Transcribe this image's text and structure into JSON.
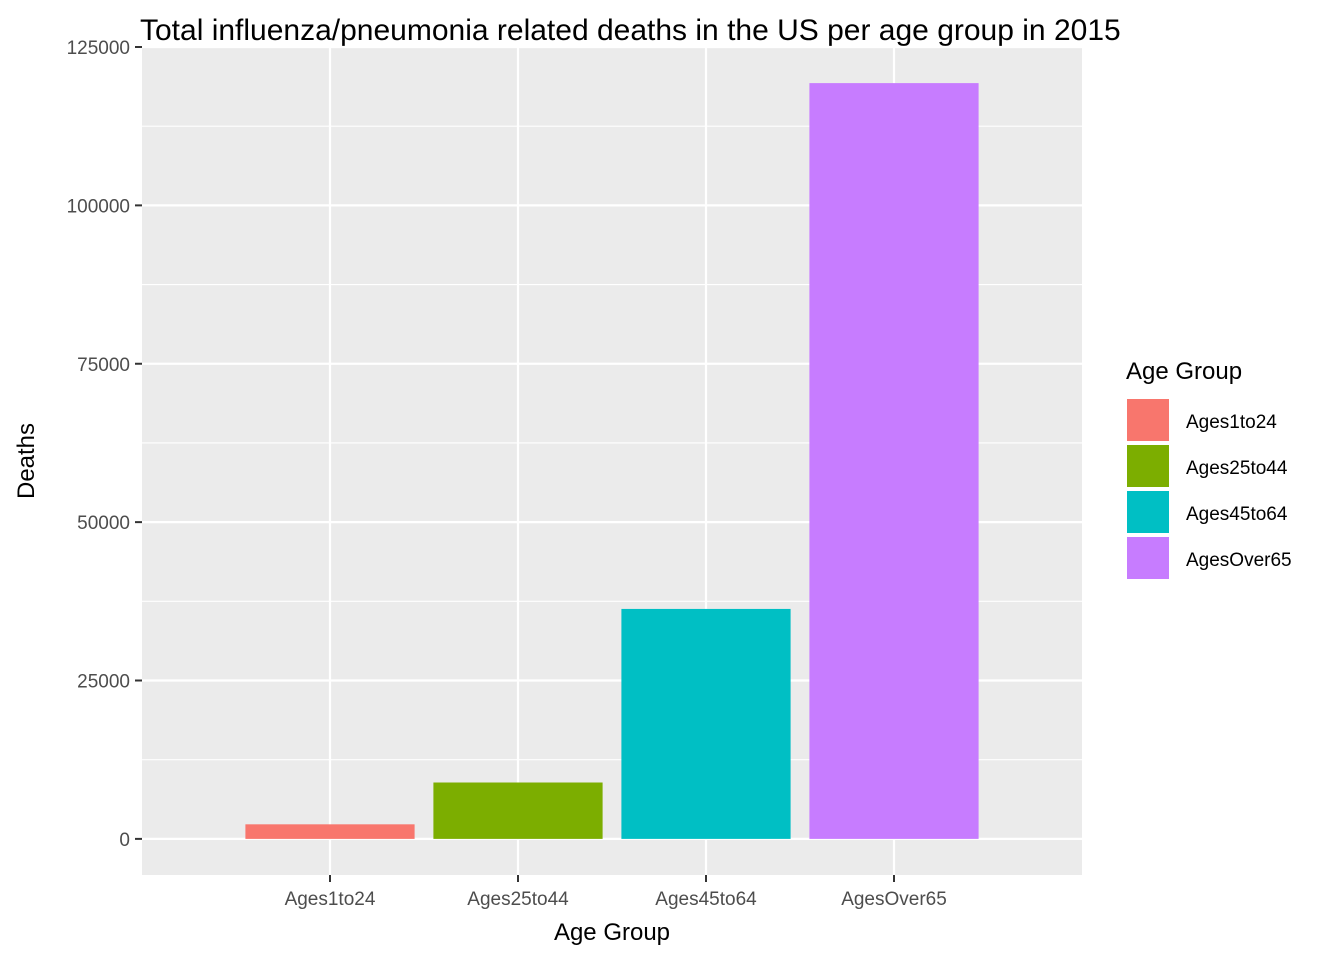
{
  "chart_data": {
    "type": "bar",
    "title": "Total influenza/pneumonia related deaths in the US per age group in 2015",
    "xlabel": "Age Group",
    "ylabel": "Deaths",
    "categories": [
      "Ages1to24",
      "Ages25to44",
      "Ages45to64",
      "AgesOver65"
    ],
    "values": [
      2300,
      8900,
      36300,
      119300
    ],
    "colors": [
      "#F8766D",
      "#7CAE00",
      "#00BFC4",
      "#C77CFF"
    ],
    "ylim": [
      -5700,
      125000
    ],
    "yticks": [
      0,
      25000,
      50000,
      75000,
      100000,
      125000
    ],
    "ytick_labels": [
      "0",
      "25000",
      "50000",
      "75000",
      "100000",
      "125000"
    ],
    "grid": true,
    "panel_background": "#EBEBEB",
    "legend": {
      "title": "Age Group",
      "position": "right",
      "items": [
        "Ages1to24",
        "Ages25to44",
        "Ages45to64",
        "AgesOver65"
      ]
    }
  }
}
